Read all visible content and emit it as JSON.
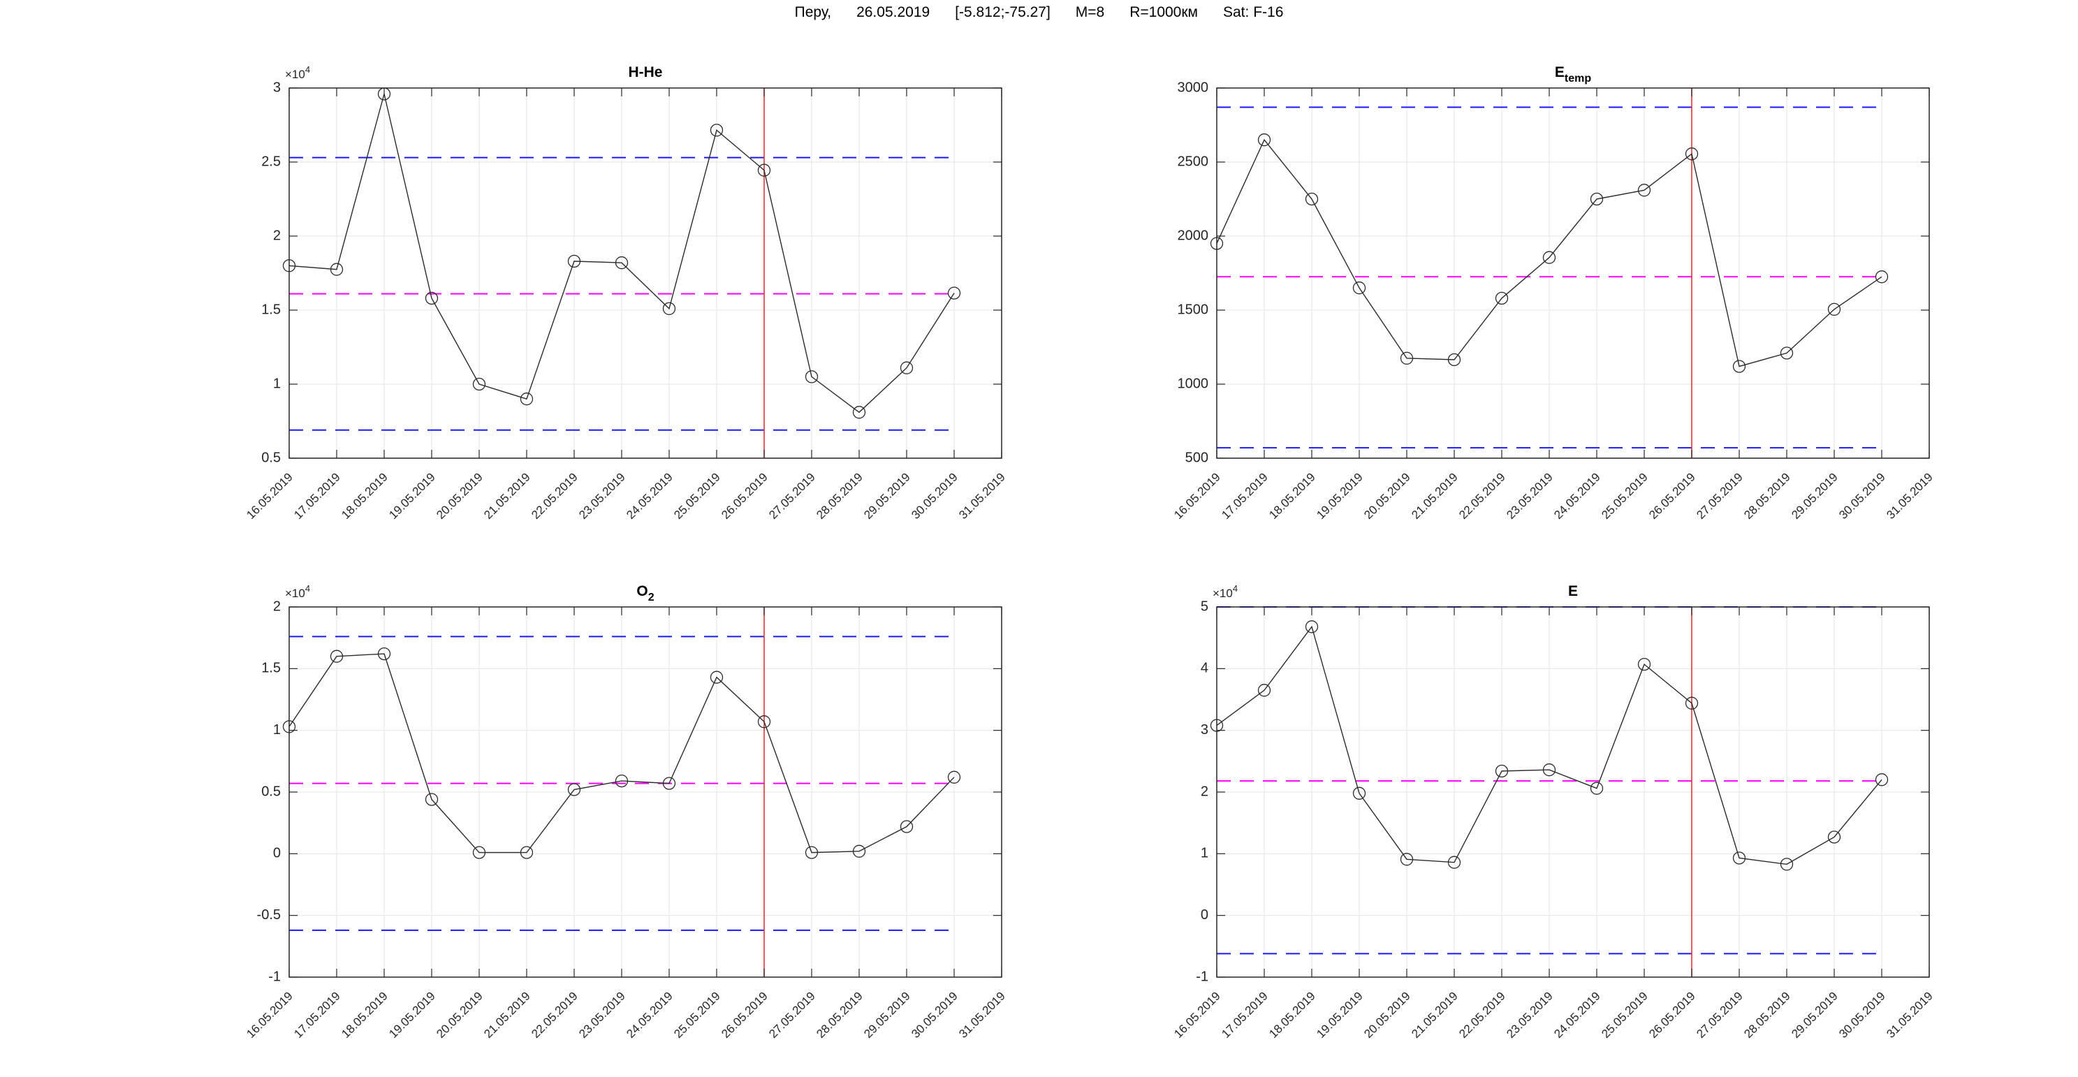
{
  "header": {
    "parts": [
      "Перу,",
      "26.05.2019",
      "[-5.812;-75.27]",
      "M=8",
      "R=1000км",
      "Sat: F-16"
    ]
  },
  "colors": {
    "limit_line": "#1a1aff",
    "mean_line": "#ff00ff",
    "event_line": "#e03333",
    "series_line": "#2b2b2b",
    "marker_edge": "#2b2b2b",
    "grid": "#e6e6e6",
    "frame": "#262626",
    "text": "#262626"
  },
  "chart_data": [
    {
      "type": "line",
      "title_main": "H-He",
      "title_sub": "",
      "exp_label": "×10",
      "exp_power": "4",
      "x_ticks": [
        "16.05.2019",
        "17.05.2019",
        "18.05.2019",
        "19.05.2019",
        "20.05.2019",
        "21.05.2019",
        "22.05.2019",
        "23.05.2019",
        "24.05.2019",
        "25.05.2019",
        "26.05.2019",
        "27.05.2019",
        "28.05.2019",
        "29.05.2019",
        "30.05.2019",
        "31.05.2019"
      ],
      "x": [
        "16.05.2019",
        "17.05.2019",
        "18.05.2019",
        "19.05.2019",
        "20.05.2019",
        "21.05.2019",
        "22.05.2019",
        "23.05.2019",
        "24.05.2019",
        "25.05.2019",
        "26.05.2019",
        "27.05.2019",
        "28.05.2019",
        "29.05.2019",
        "30.05.2019"
      ],
      "values": [
        18000,
        17750,
        29600,
        15800,
        10000,
        9000,
        18300,
        18200,
        15100,
        27150,
        24450,
        10500,
        8100,
        11100,
        16150
      ],
      "upper_limit": 25300,
      "lower_limit": 6900,
      "mean": 16100,
      "event_date": "26.05.2019",
      "event_index": 10,
      "ylim": [
        5000,
        30000
      ],
      "yticks": [
        5000,
        10000,
        15000,
        20000,
        25000,
        30000
      ],
      "ytick_labels": [
        "0.5",
        "1",
        "1.5",
        "2",
        "2.5",
        "3"
      ],
      "grid": true,
      "legend": null
    },
    {
      "type": "line",
      "title_main": "E",
      "title_sub": "temp",
      "exp_label": null,
      "exp_power": null,
      "x_ticks": [
        "16.05.2019",
        "17.05.2019",
        "18.05.2019",
        "19.05.2019",
        "20.05.2019",
        "21.05.2019",
        "22.05.2019",
        "23.05.2019",
        "24.05.2019",
        "25.05.2019",
        "26.05.2019",
        "27.05.2019",
        "28.05.2019",
        "29.05.2019",
        "30.05.2019",
        "31.05.2019"
      ],
      "x": [
        "16.05.2019",
        "17.05.2019",
        "18.05.2019",
        "19.05.2019",
        "20.05.2019",
        "21.05.2019",
        "22.05.2019",
        "23.05.2019",
        "24.05.2019",
        "25.05.2019",
        "26.05.2019",
        "27.05.2019",
        "28.05.2019",
        "29.05.2019",
        "30.05.2019"
      ],
      "values": [
        1950,
        2650,
        2250,
        1650,
        1175,
        1165,
        1580,
        1855,
        2250,
        2310,
        2555,
        1120,
        1210,
        1505,
        1725
      ],
      "upper_limit": 2870,
      "lower_limit": 570,
      "mean": 1725,
      "event_date": "26.05.2019",
      "event_index": 10,
      "ylim": [
        500,
        3000
      ],
      "yticks": [
        500,
        1000,
        1500,
        2000,
        2500,
        3000
      ],
      "ytick_labels": [
        "500",
        "1000",
        "1500",
        "2000",
        "2500",
        "3000"
      ],
      "grid": true,
      "legend": null
    },
    {
      "type": "line",
      "title_main": "O",
      "title_sub": "2",
      "exp_label": "×10",
      "exp_power": "4",
      "x_ticks": [
        "16.05.2019",
        "17.05.2019",
        "18.05.2019",
        "19.05.2019",
        "20.05.2019",
        "21.05.2019",
        "22.05.2019",
        "23.05.2019",
        "24.05.2019",
        "25.05.2019",
        "26.05.2019",
        "27.05.2019",
        "28.05.2019",
        "29.05.2019",
        "30.05.2019",
        "31.05.2019"
      ],
      "x": [
        "16.05.2019",
        "17.05.2019",
        "18.05.2019",
        "19.05.2019",
        "20.05.2019",
        "21.05.2019",
        "22.05.2019",
        "23.05.2019",
        "24.05.2019",
        "25.05.2019",
        "26.05.2019",
        "27.05.2019",
        "28.05.2019",
        "29.05.2019",
        "30.05.2019"
      ],
      "values": [
        10300,
        16000,
        16200,
        4400,
        100,
        100,
        5200,
        5900,
        5700,
        14300,
        10700,
        100,
        200,
        2200,
        6200
      ],
      "upper_limit": 17600,
      "lower_limit": -6200,
      "mean": 5700,
      "event_date": "26.05.2019",
      "event_index": 10,
      "ylim": [
        -10000,
        20000
      ],
      "yticks": [
        -10000,
        -5000,
        0,
        5000,
        10000,
        15000,
        20000
      ],
      "ytick_labels": [
        "-1",
        "-0.5",
        "0",
        "0.5",
        "1",
        "1.5",
        "2"
      ],
      "grid": true,
      "legend": null
    },
    {
      "type": "line",
      "title_main": "E",
      "title_sub": "",
      "exp_label": "×10",
      "exp_power": "4",
      "x_ticks": [
        "16.05.2019",
        "17.05.2019",
        "18.05.2019",
        "19.05.2019",
        "20.05.2019",
        "21.05.2019",
        "22.05.2019",
        "23.05.2019",
        "24.05.2019",
        "25.05.2019",
        "26.05.2019",
        "27.05.2019",
        "28.05.2019",
        "29.05.2019",
        "30.05.2019",
        "31.05.2019"
      ],
      "x": [
        "16.05.2019",
        "17.05.2019",
        "18.05.2019",
        "19.05.2019",
        "20.05.2019",
        "21.05.2019",
        "22.05.2019",
        "23.05.2019",
        "24.05.2019",
        "25.05.2019",
        "26.05.2019",
        "27.05.2019",
        "28.05.2019",
        "29.05.2019",
        "30.05.2019"
      ],
      "values": [
        30800,
        36500,
        46800,
        19800,
        9100,
        8600,
        23400,
        23600,
        20600,
        40700,
        34400,
        9300,
        8300,
        12700,
        22000
      ],
      "upper_limit": 50000,
      "lower_limit": -6200,
      "mean": 21800,
      "event_date": "26.05.2019",
      "event_index": 10,
      "ylim": [
        -10000,
        50000
      ],
      "yticks": [
        -10000,
        0,
        10000,
        20000,
        30000,
        40000,
        50000
      ],
      "ytick_labels": [
        "-1",
        "0",
        "1",
        "2",
        "3",
        "4",
        "5"
      ],
      "grid": true,
      "legend": null
    }
  ]
}
